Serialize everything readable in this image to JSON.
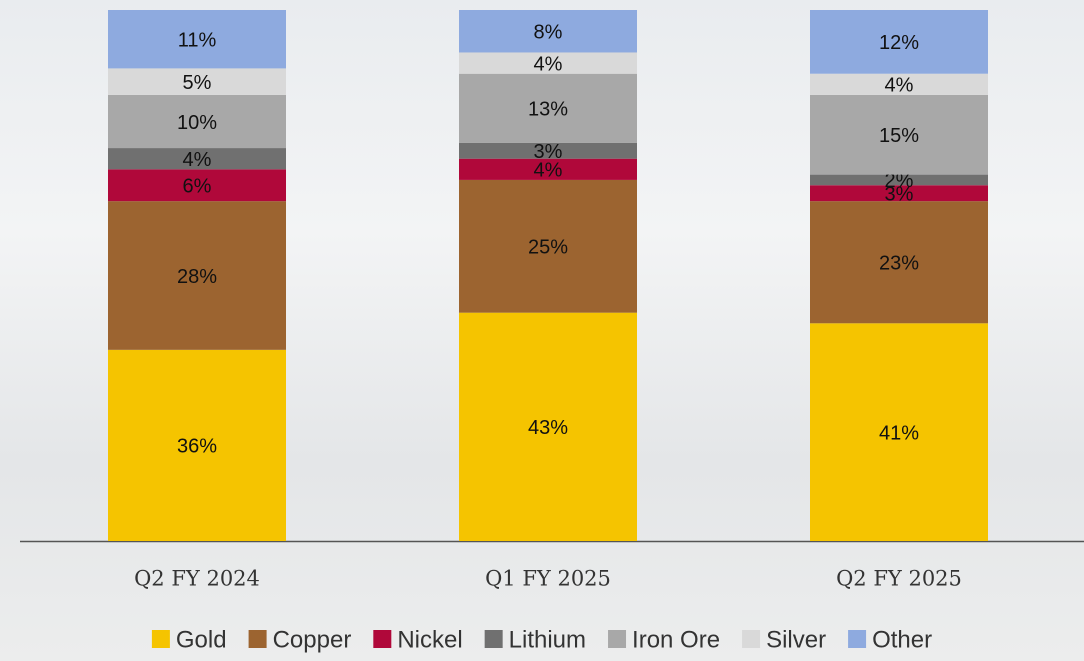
{
  "chart_data": {
    "type": "stacked_bar",
    "categories": [
      "Q2 FY 2024",
      "Q1 FY 2025",
      "Q2 FY 2025"
    ],
    "series": [
      {
        "name": "Gold",
        "color": "#f5c400",
        "values": [
          36,
          43,
          41
        ],
        "value_labels": [
          "36%",
          "43%",
          "41%"
        ]
      },
      {
        "name": "Copper",
        "color": "#9c6430",
        "values": [
          28,
          25,
          23
        ],
        "value_labels": [
          "28%",
          "25%",
          "23%"
        ]
      },
      {
        "name": "Nickel",
        "color": "#b0083a",
        "values": [
          6,
          4,
          3
        ],
        "value_labels": [
          "6%",
          "4%",
          "3%"
        ]
      },
      {
        "name": "Lithium",
        "color": "#707070",
        "values": [
          4,
          3,
          2
        ],
        "value_labels": [
          "4%",
          "3%",
          "2%"
        ]
      },
      {
        "name": "Iron Ore",
        "color": "#a8a8a8",
        "values": [
          10,
          13,
          15
        ],
        "value_labels": [
          "10%",
          "13%",
          "15%"
        ]
      },
      {
        "name": "Silver",
        "color": "#d9d9d9",
        "values": [
          5,
          4,
          4
        ],
        "value_labels": [
          "5%",
          "4%",
          "4%"
        ]
      },
      {
        "name": "Other",
        "color": "#8eaadf",
        "values": [
          11,
          8,
          12
        ],
        "value_labels": [
          "11%",
          "8%",
          "12%"
        ]
      }
    ],
    "ylim": [
      0,
      100
    ],
    "legend": "bottom"
  }
}
